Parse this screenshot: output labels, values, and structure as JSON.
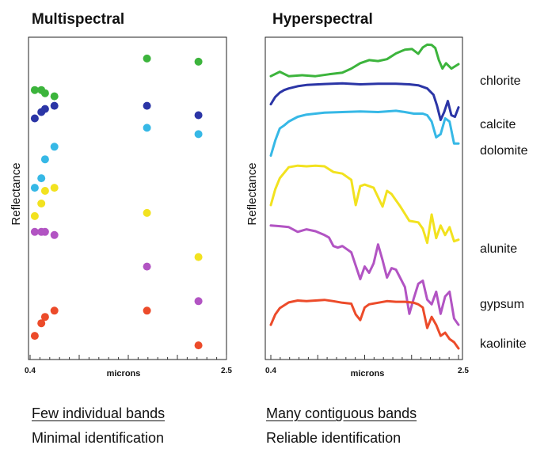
{
  "chart_data": [
    {
      "type": "scatter",
      "title": "Multispectral",
      "xlabel": "microns",
      "ylabel": "Reflectance",
      "xlim": [
        0.4,
        2.5
      ],
      "x_tick_labels": [
        "0.4",
        "2.5"
      ],
      "bands_microns": [
        0.45,
        0.52,
        0.56,
        0.66,
        1.65,
        2.2
      ],
      "series": [
        {
          "name": "chlorite",
          "color": "#3cb43c",
          "x": [
            0.45,
            0.52,
            0.56,
            0.66,
            1.65,
            2.2
          ],
          "y": [
            0.84,
            0.84,
            0.83,
            0.82,
            0.94,
            0.93
          ]
        },
        {
          "name": "calcite",
          "color": "#2b35a6",
          "x": [
            0.45,
            0.52,
            0.56,
            0.66,
            1.65,
            2.2
          ],
          "y": [
            0.75,
            0.77,
            0.78,
            0.79,
            0.79,
            0.76
          ]
        },
        {
          "name": "dolomite",
          "color": "#36b8e6",
          "x": [
            0.45,
            0.52,
            0.56,
            0.66,
            1.65,
            2.2
          ],
          "y": [
            0.53,
            0.56,
            0.62,
            0.66,
            0.72,
            0.7
          ]
        },
        {
          "name": "alunite",
          "color": "#f2e21f",
          "x": [
            0.45,
            0.52,
            0.56,
            0.66,
            1.65,
            2.2
          ],
          "y": [
            0.44,
            0.48,
            0.52,
            0.53,
            0.45,
            0.31
          ]
        },
        {
          "name": "gypsum",
          "color": "#b254c3",
          "x": [
            0.45,
            0.52,
            0.56,
            0.66,
            1.65,
            2.2
          ],
          "y": [
            0.39,
            0.39,
            0.39,
            0.38,
            0.28,
            0.17
          ]
        },
        {
          "name": "kaolinite",
          "color": "#ec4b2a",
          "x": [
            0.45,
            0.52,
            0.56,
            0.66,
            1.65,
            2.2
          ],
          "y": [
            0.06,
            0.1,
            0.12,
            0.14,
            0.14,
            0.03
          ]
        }
      ]
    },
    {
      "type": "line",
      "title": "Hyperspectral",
      "xlabel": "microns",
      "ylabel": "Reflectance",
      "xlim": [
        0.4,
        2.5
      ],
      "x_tick_labels": [
        "0.4",
        "2.5"
      ],
      "series": [
        {
          "name": "chlorite",
          "color": "#3cb43c",
          "x": [
            0.4,
            0.5,
            0.6,
            0.75,
            0.9,
            1.05,
            1.2,
            1.3,
            1.4,
            1.5,
            1.6,
            1.7,
            1.8,
            1.9,
            1.98,
            2.05,
            2.1,
            2.15,
            2.2,
            2.24,
            2.28,
            2.32,
            2.36,
            2.42,
            2.5
          ],
          "y": [
            0.884,
            0.898,
            0.884,
            0.887,
            0.884,
            0.89,
            0.895,
            0.908,
            0.925,
            0.935,
            0.932,
            0.938,
            0.956,
            0.968,
            0.97,
            0.955,
            0.975,
            0.984,
            0.983,
            0.973,
            0.935,
            0.908,
            0.925,
            0.908,
            0.922
          ]
        },
        {
          "name": "calcite",
          "color": "#2b35a6",
          "x": [
            0.4,
            0.45,
            0.5,
            0.55,
            0.6,
            0.7,
            0.8,
            1.0,
            1.2,
            1.4,
            1.6,
            1.8,
            1.95,
            2.05,
            2.15,
            2.22,
            2.26,
            2.3,
            2.34,
            2.38,
            2.42,
            2.46,
            2.5
          ],
          "y": [
            0.795,
            0.818,
            0.832,
            0.84,
            0.845,
            0.852,
            0.856,
            0.859,
            0.861,
            0.858,
            0.86,
            0.86,
            0.858,
            0.855,
            0.845,
            0.825,
            0.79,
            0.745,
            0.77,
            0.805,
            0.76,
            0.755,
            0.785
          ]
        },
        {
          "name": "dolomite",
          "color": "#36b8e6",
          "x": [
            0.4,
            0.45,
            0.5,
            0.55,
            0.6,
            0.7,
            0.8,
            1.0,
            1.2,
            1.4,
            1.6,
            1.8,
            1.9,
            2.0,
            2.1,
            2.15,
            2.2,
            2.25,
            2.3,
            2.35,
            2.4,
            2.45,
            2.5
          ],
          "y": [
            0.632,
            0.68,
            0.718,
            0.728,
            0.74,
            0.755,
            0.762,
            0.768,
            0.77,
            0.772,
            0.77,
            0.774,
            0.77,
            0.765,
            0.765,
            0.76,
            0.74,
            0.69,
            0.7,
            0.75,
            0.74,
            0.67,
            0.67
          ]
        },
        {
          "name": "alunite",
          "color": "#f2e21f",
          "x": [
            0.4,
            0.45,
            0.5,
            0.6,
            0.7,
            0.8,
            0.9,
            1.0,
            1.1,
            1.2,
            1.3,
            1.35,
            1.4,
            1.45,
            1.55,
            1.65,
            1.7,
            1.75,
            1.85,
            1.95,
            2.05,
            2.1,
            2.15,
            2.2,
            2.25,
            2.3,
            2.35,
            2.4,
            2.45,
            2.5
          ],
          "y": [
            0.475,
            0.525,
            0.56,
            0.595,
            0.6,
            0.598,
            0.6,
            0.598,
            0.58,
            0.575,
            0.555,
            0.475,
            0.535,
            0.54,
            0.53,
            0.47,
            0.52,
            0.51,
            0.47,
            0.425,
            0.42,
            0.4,
            0.355,
            0.445,
            0.37,
            0.41,
            0.38,
            0.405,
            0.36,
            0.365
          ]
        },
        {
          "name": "gypsum",
          "color": "#b254c3",
          "x": [
            0.4,
            0.5,
            0.6,
            0.7,
            0.8,
            0.9,
            1.0,
            1.05,
            1.1,
            1.15,
            1.2,
            1.3,
            1.4,
            1.45,
            1.5,
            1.55,
            1.6,
            1.65,
            1.7,
            1.75,
            1.8,
            1.9,
            1.95,
            2.0,
            2.05,
            2.1,
            2.15,
            2.2,
            2.25,
            2.3,
            2.35,
            2.4,
            2.45,
            2.5
          ],
          "y": [
            0.41,
            0.408,
            0.405,
            0.39,
            0.398,
            0.392,
            0.38,
            0.372,
            0.345,
            0.34,
            0.345,
            0.325,
            0.24,
            0.28,
            0.26,
            0.29,
            0.35,
            0.3,
            0.245,
            0.275,
            0.27,
            0.215,
            0.13,
            0.18,
            0.225,
            0.235,
            0.175,
            0.16,
            0.2,
            0.13,
            0.185,
            0.2,
            0.115,
            0.095
          ]
        },
        {
          "name": "kaolinite",
          "color": "#ec4b2a",
          "x": [
            0.4,
            0.45,
            0.5,
            0.6,
            0.7,
            0.8,
            0.9,
            1.0,
            1.1,
            1.2,
            1.3,
            1.35,
            1.4,
            1.45,
            1.5,
            1.6,
            1.7,
            1.8,
            1.9,
            2.0,
            2.05,
            2.1,
            2.15,
            2.2,
            2.25,
            2.3,
            2.35,
            2.4,
            2.45,
            2.5
          ],
          "y": [
            0.095,
            0.128,
            0.148,
            0.166,
            0.172,
            0.17,
            0.172,
            0.174,
            0.17,
            0.165,
            0.162,
            0.128,
            0.11,
            0.15,
            0.16,
            0.165,
            0.17,
            0.168,
            0.168,
            0.165,
            0.16,
            0.15,
            0.085,
            0.12,
            0.095,
            0.06,
            0.07,
            0.05,
            0.04,
            0.02
          ]
        }
      ]
    }
  ],
  "labels": {
    "chlorite": "chlorite",
    "calcite": "calcite",
    "dolomite": "dolomite",
    "alunite": "alunite",
    "gypsum": "gypsum",
    "kaolinite": "kaolinite"
  },
  "captions": {
    "multi_heading": "Few individual bands",
    "multi_result": "Minimal identification",
    "hyper_heading": "Many contiguous bands",
    "hyper_result": "Reliable identification"
  }
}
